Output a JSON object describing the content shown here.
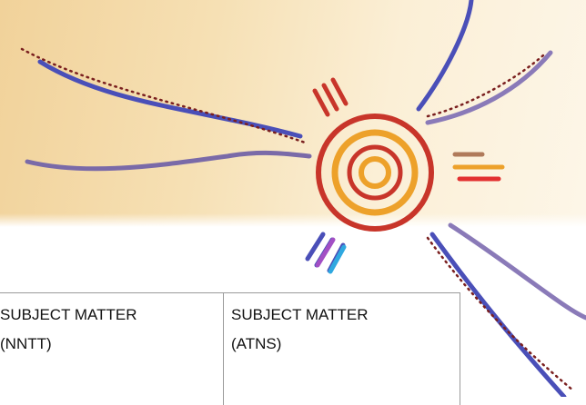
{
  "table": {
    "rows": [
      [
        "SUBJECT MATTER (NNTT)",
        "SUBJECT MATTER (ATNS)"
      ]
    ]
  }
}
